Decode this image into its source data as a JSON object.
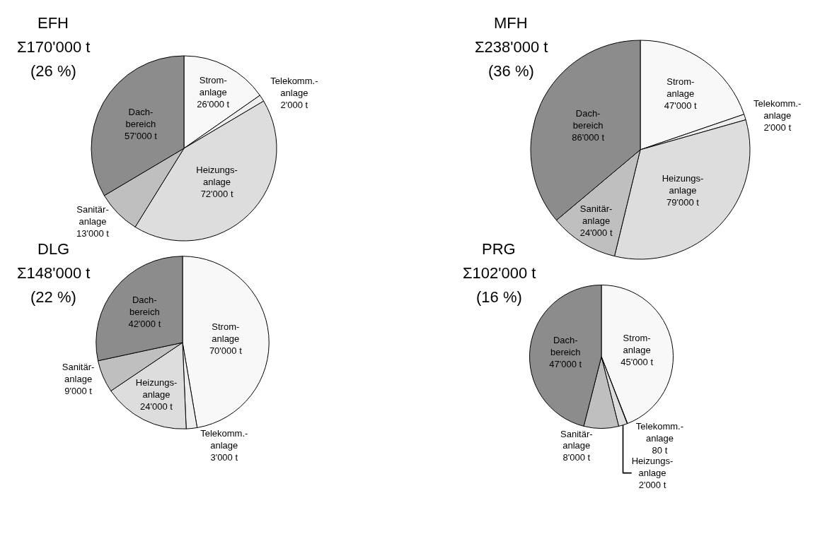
{
  "chart_data": [
    {
      "type": "pie",
      "title": "EFH",
      "subtitle": "Σ170'000 t",
      "annotations": [
        "(26 %)"
      ],
      "categories": [
        "Strom-anlage",
        "Telekomm.-anlage",
        "Heizungs-anlage",
        "Sanitär-anlage",
        "Dach-bereich"
      ],
      "values": [
        26000,
        2000,
        72000,
        13000,
        57000
      ],
      "value_labels": [
        "26'000 t",
        "2'000 t",
        "72'000 t",
        "13'000 t",
        "57'000 t"
      ],
      "colors": [
        "#f8f8f8",
        "#eeeeee",
        "#dddddd",
        "#bfbfbf",
        "#8c8c8c"
      ]
    },
    {
      "type": "pie",
      "title": "MFH",
      "subtitle": "Σ238'000 t",
      "annotations": [
        "(36 %)"
      ],
      "categories": [
        "Strom-anlage",
        "Telekomm.-anlage",
        "Heizungs-anlage",
        "Sanitär-anlage",
        "Dach-bereich"
      ],
      "values": [
        47000,
        2000,
        79000,
        24000,
        86000
      ],
      "value_labels": [
        "47'000 t",
        "2'000 t",
        "79'000 t",
        "24'000 t",
        "86'000 t"
      ],
      "colors": [
        "#f8f8f8",
        "#eeeeee",
        "#dddddd",
        "#bfbfbf",
        "#8c8c8c"
      ]
    },
    {
      "type": "pie",
      "title": "DLG",
      "subtitle": "Σ148'000 t",
      "annotations": [
        "(22 %)"
      ],
      "categories": [
        "Strom-anlage",
        "Telekomm.-anlage",
        "Heizungs-anlage",
        "Sanitär-anlage",
        "Dach-bereich"
      ],
      "values": [
        70000,
        3000,
        24000,
        9000,
        42000
      ],
      "value_labels": [
        "70'000 t",
        "3'000 t",
        "24'000 t",
        "9'000 t",
        "42'000 t"
      ],
      "colors": [
        "#f8f8f8",
        "#eeeeee",
        "#dddddd",
        "#bfbfbf",
        "#8c8c8c"
      ]
    },
    {
      "type": "pie",
      "title": "PRG",
      "subtitle": "Σ102'000 t",
      "annotations": [
        "(16 %)"
      ],
      "categories": [
        "Strom-anlage",
        "Telekomm.-anlage",
        "Heizungs-anlage",
        "Sanitär-anlage",
        "Dach-bereich"
      ],
      "values": [
        45000,
        80,
        2000,
        8000,
        47000
      ],
      "value_labels": [
        "45'000 t",
        "80 t",
        "2'000 t",
        "8'000 t",
        "47'000 t"
      ],
      "colors": [
        "#f8f8f8",
        "#eeeeee",
        "#dddddd",
        "#bfbfbf",
        "#8c8c8c"
      ]
    }
  ]
}
